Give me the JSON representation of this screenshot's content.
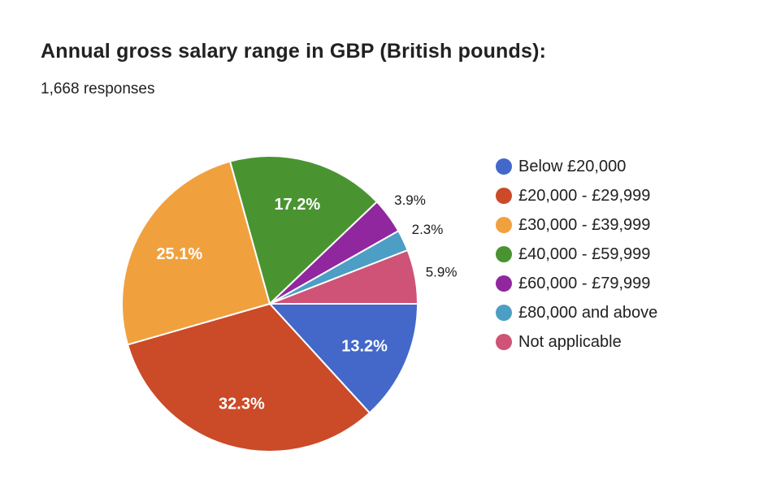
{
  "chart_data": {
    "type": "pie",
    "title": "Annual gross salary range in GBP (British pounds):",
    "subtitle": "1,668 responses",
    "total_responses": 1668,
    "legend_position": "right",
    "start_angle_deg": 90,
    "direction": "clockwise",
    "slice_border_color": "#ffffff",
    "slices": [
      {
        "label": "Below £20,000",
        "percent": 13.2,
        "color": "#4368C9",
        "label_text": "13.2%",
        "label_placement": "inside"
      },
      {
        "label": "£20,000 - £29,999",
        "percent": 32.3,
        "color": "#CB4A28",
        "label_text": "32.3%",
        "label_placement": "inside"
      },
      {
        "label": "£30,000 - £39,999",
        "percent": 25.1,
        "color": "#F0A13E",
        "label_text": "25.1%",
        "label_placement": "inside"
      },
      {
        "label": "£40,000 - £59,999",
        "percent": 17.2,
        "color": "#4A9331",
        "label_text": "17.2%",
        "label_placement": "inside"
      },
      {
        "label": "£60,000 - £79,999",
        "percent": 3.9,
        "color": "#91279F",
        "label_text": "3.9%",
        "label_placement": "outside"
      },
      {
        "label": "£80,000 and above",
        "percent": 2.3,
        "color": "#4C9EC4",
        "label_text": "2.3%",
        "label_placement": "outside"
      },
      {
        "label": "Not applicable",
        "percent": 5.9,
        "color": "#CF5277",
        "label_text": "5.9%",
        "label_placement": "outside"
      }
    ]
  }
}
